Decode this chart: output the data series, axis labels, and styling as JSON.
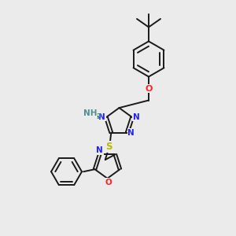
{
  "background_color": "#ebebeb",
  "bond_color": "#1a1a1a",
  "N_color": "#2020ff",
  "O_color": "#ff2020",
  "S_color": "#b8b800",
  "NH_color": "#509090",
  "figsize": [
    3.0,
    3.0
  ],
  "dpi": 100,
  "xlim": [
    0,
    10
  ],
  "ylim": [
    0,
    10
  ]
}
